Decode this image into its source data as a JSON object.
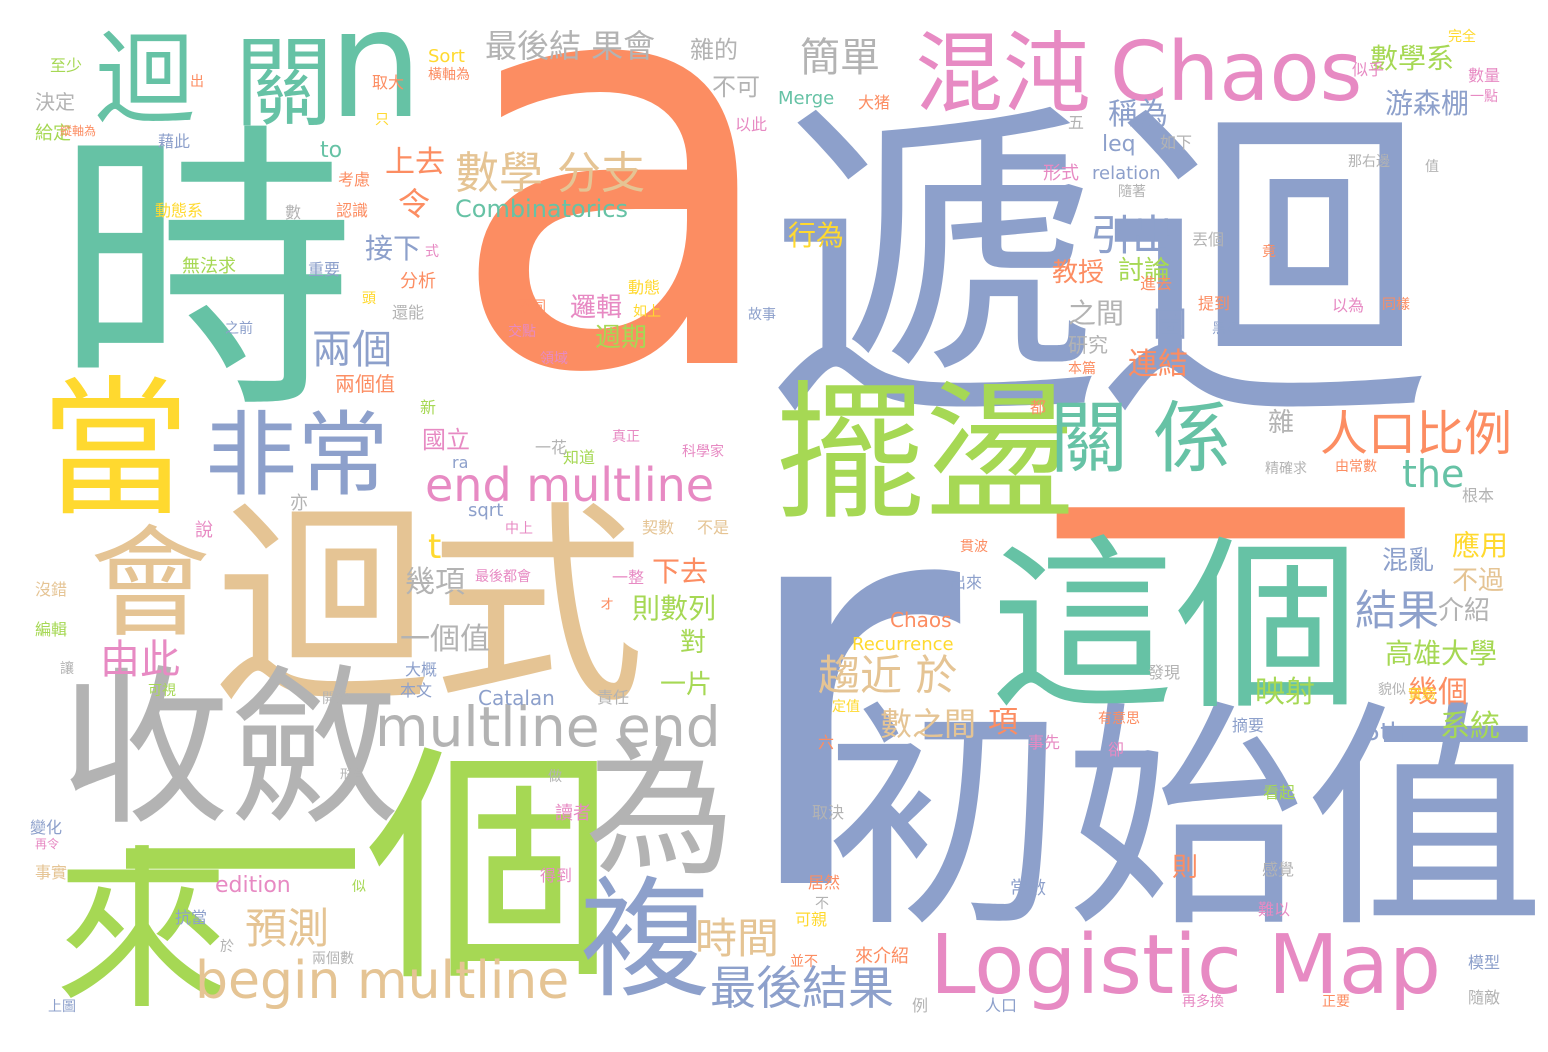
{
  "palette": {
    "orange": "#fc8d62",
    "blue": "#8da0cb",
    "green": "#66c2a5",
    "pink": "#e78ac3",
    "lime": "#a6d854",
    "yellow": "#ffd92f",
    "tan": "#e5c494",
    "grey": "#b3b3b3"
  },
  "words": [
    {
      "text": "a",
      "color": "#fc8d62"
    },
    {
      "text": "r",
      "color": "#8da0cb"
    },
    {
      "text": "遞迴",
      "color": "#8da0cb"
    },
    {
      "text": "時",
      "color": "#66c2a5"
    },
    {
      "text": "初始值",
      "color": "#8da0cb"
    },
    {
      "text": "一個",
      "color": "#a6d854"
    },
    {
      "text": "迴式",
      "color": "#e5c494"
    },
    {
      "text": "收斂",
      "color": "#b3b3b3"
    },
    {
      "text": "一",
      "color": "#fc8d62"
    },
    {
      "text": "這個",
      "color": "#66c2a5"
    },
    {
      "text": "擺盪",
      "color": "#a6d854"
    },
    {
      "text": "當",
      "color": "#ffd92f"
    },
    {
      "text": "來",
      "color": "#a6d854"
    },
    {
      "text": "為",
      "color": "#b3b3b3"
    },
    {
      "text": "會",
      "color": "#e5c494"
    },
    {
      "text": "複",
      "color": "#8da0cb"
    },
    {
      "text": "Logistic Map",
      "color": "#e78ac3"
    },
    {
      "text": "非常",
      "color": "#8da0cb"
    },
    {
      "text": "迴",
      "color": "#66c2a5"
    },
    {
      "text": "關",
      "color": "#66c2a5"
    },
    {
      "text": "n",
      "color": "#66c2a5"
    },
    {
      "text": "混沌",
      "color": "#e78ac3"
    },
    {
      "text": "Chaos",
      "color": "#e78ac3"
    },
    {
      "text": "關 係",
      "color": "#66c2a5"
    },
    {
      "text": "multline end",
      "color": "#b3b3b3"
    },
    {
      "text": "begin multline",
      "color": "#e5c494"
    },
    {
      "text": "end multline",
      "color": "#e78ac3"
    },
    {
      "text": "人口比例",
      "color": "#fc8d62"
    },
    {
      "text": "數學 分支",
      "color": "#e5c494"
    },
    {
      "text": "最後結果",
      "color": "#8da0cb"
    },
    {
      "text": "趨近 於",
      "color": "#e5c494"
    },
    {
      "text": "時間",
      "color": "#e5c494"
    },
    {
      "text": "預測",
      "color": "#e5c494"
    },
    {
      "text": "結果",
      "color": "#8da0cb"
    },
    {
      "text": "引出",
      "color": "#8da0cb"
    },
    {
      "text": "兩個",
      "color": "#8da0cb"
    },
    {
      "text": "由此",
      "color": "#e78ac3"
    },
    {
      "text": "簡單",
      "color": "#b3b3b3"
    },
    {
      "text": "最後結 果會",
      "color": "#b3b3b3"
    },
    {
      "text": "Combinatorics",
      "color": "#66c2a5"
    },
    {
      "text": "數學系",
      "color": "#a6d854"
    },
    {
      "text": "the",
      "color": "#66c2a5"
    },
    {
      "text": "令",
      "color": "#fc8d62"
    },
    {
      "text": "高雄大學",
      "color": "#a6d854"
    },
    {
      "text": "游森棚",
      "color": "#8da0cb"
    },
    {
      "text": "稱為",
      "color": "#8da0cb"
    },
    {
      "text": "上去",
      "color": "#fc8d62"
    },
    {
      "text": "t",
      "color": "#ffd92f"
    },
    {
      "text": "一個值",
      "color": "#b3b3b3"
    },
    {
      "text": "幾項",
      "color": "#b3b3b3"
    },
    {
      "text": "下去",
      "color": "#fc8d62"
    },
    {
      "text": "則數列",
      "color": "#a6d854"
    },
    {
      "text": "一片",
      "color": "#a6d854"
    },
    {
      "text": "對",
      "color": "#a6d854"
    },
    {
      "text": "數之間",
      "color": "#e5c494"
    },
    {
      "text": "項",
      "color": "#fc8d62"
    },
    {
      "text": "映射",
      "color": "#a6d854"
    },
    {
      "text": "系統",
      "color": "#a6d854"
    },
    {
      "text": "幾個",
      "color": "#fc8d62"
    },
    {
      "text": "應用",
      "color": "#ffd92f"
    },
    {
      "text": "不過",
      "color": "#e5c494"
    },
    {
      "text": "介紹",
      "color": "#b3b3b3"
    },
    {
      "text": "混亂",
      "color": "#8da0cb"
    },
    {
      "text": "5th",
      "color": "#8da0cb"
    },
    {
      "text": "連結",
      "color": "#fc8d62"
    },
    {
      "text": "之間",
      "color": "#b3b3b3"
    },
    {
      "text": "圖",
      "color": "#8da0cb"
    },
    {
      "text": "研究",
      "color": "#b3b3b3"
    },
    {
      "text": "教授",
      "color": "#fc8d62"
    },
    {
      "text": "討論",
      "color": "#a6d854"
    },
    {
      "text": "邏輯",
      "color": "#e78ac3"
    },
    {
      "text": "週期",
      "color": "#a6d854"
    },
    {
      "text": "行為",
      "color": "#ffd92f"
    },
    {
      "text": "接下",
      "color": "#8da0cb"
    },
    {
      "text": "國立",
      "color": "#e78ac3"
    },
    {
      "text": "雜",
      "color": "#b3b3b3"
    },
    {
      "text": "to",
      "color": "#66c2a5"
    },
    {
      "text": "leq",
      "color": "#8da0cb"
    },
    {
      "text": "relation",
      "color": "#8da0cb"
    },
    {
      "text": "形式",
      "color": "#e78ac3"
    },
    {
      "text": "Merge",
      "color": "#66c2a5"
    },
    {
      "text": "Sort",
      "color": "#ffd92f"
    },
    {
      "text": "Catalan",
      "color": "#8da0cb"
    },
    {
      "text": "Chaos",
      "color": "#fc8d62"
    },
    {
      "text": "Recurrence",
      "color": "#ffd92f"
    },
    {
      "text": "edition",
      "color": "#e78ac3"
    },
    {
      "text": "sqrt",
      "color": "#8da0cb"
    },
    {
      "text": "ra",
      "color": "#8da0cb"
    },
    {
      "text": "不可",
      "color": "#b3b3b3"
    },
    {
      "text": "雜的",
      "color": "#b3b3b3"
    },
    {
      "text": "取大",
      "color": "#fc8d62"
    },
    {
      "text": "兩個值",
      "color": "#fc8d62"
    },
    {
      "text": "分析",
      "color": "#fc8d62"
    },
    {
      "text": "無法求",
      "color": "#a6d854"
    },
    {
      "text": "動態系",
      "color": "#ffd92f"
    },
    {
      "text": "決定",
      "color": "#b3b3b3"
    },
    {
      "text": "至少",
      "color": "#a6d854"
    },
    {
      "text": "給定",
      "color": "#a6d854"
    },
    {
      "text": "藉此",
      "color": "#8da0cb"
    },
    {
      "text": "出",
      "color": "#fc8d62"
    },
    {
      "text": "只",
      "color": "#ffd92f"
    },
    {
      "text": "考慮",
      "color": "#fc8d62"
    },
    {
      "text": "認識",
      "color": "#fc8d62"
    },
    {
      "text": "數",
      "color": "#b3b3b3"
    },
    {
      "text": "重要",
      "color": "#8da0cb"
    },
    {
      "text": "還能",
      "color": "#b3b3b3"
    },
    {
      "text": "之前",
      "color": "#8da0cb"
    },
    {
      "text": "不同",
      "color": "#fc8d62"
    },
    {
      "text": "交點",
      "color": "#e78ac3"
    },
    {
      "text": "領域",
      "color": "#e78ac3"
    },
    {
      "text": "動態",
      "color": "#ffd92f"
    },
    {
      "text": "如上",
      "color": "#ffd92f"
    },
    {
      "text": "知道",
      "color": "#a6d854"
    },
    {
      "text": "真正",
      "color": "#e78ac3"
    },
    {
      "text": "科學家",
      "color": "#e78ac3"
    },
    {
      "text": "契數",
      "color": "#e5c494"
    },
    {
      "text": "不是",
      "color": "#e5c494"
    },
    {
      "text": "最後都會",
      "color": "#e78ac3"
    },
    {
      "text": "一整",
      "color": "#e78ac3"
    },
    {
      "text": "大概",
      "color": "#8da0cb"
    },
    {
      "text": "本文",
      "color": "#8da0cb"
    },
    {
      "text": "責任",
      "color": "#b3b3b3"
    },
    {
      "text": "開始",
      "color": "#b3b3b3"
    },
    {
      "text": "可視",
      "color": "#a6d854"
    },
    {
      "text": "讓",
      "color": "#b3b3b3"
    },
    {
      "text": "編輯",
      "color": "#a6d854"
    },
    {
      "text": "沒錯",
      "color": "#e5c494"
    },
    {
      "text": "說",
      "color": "#e78ac3"
    },
    {
      "text": "亦",
      "color": "#b3b3b3"
    },
    {
      "text": "變化",
      "color": "#8da0cb"
    },
    {
      "text": "事實",
      "color": "#e5c494"
    },
    {
      "text": "抗當",
      "color": "#8da0cb"
    },
    {
      "text": "於",
      "color": "#b3b3b3"
    },
    {
      "text": "上圖",
      "color": "#8da0cb"
    },
    {
      "text": "兩個數",
      "color": "#b3b3b3"
    },
    {
      "text": "讀者",
      "color": "#e78ac3"
    },
    {
      "text": "得到",
      "color": "#e78ac3"
    },
    {
      "text": "似",
      "color": "#a6d854"
    },
    {
      "text": "做",
      "color": "#b3b3b3"
    },
    {
      "text": "形有",
      "color": "#b3b3b3"
    },
    {
      "text": "可親",
      "color": "#ffd92f"
    },
    {
      "text": "並不",
      "color": "#fc8d62"
    },
    {
      "text": "來介紹",
      "color": "#fc8d62"
    },
    {
      "text": "例",
      "color": "#b3b3b3"
    },
    {
      "text": "人口",
      "color": "#8da0cb"
    },
    {
      "text": "居然",
      "color": "#fc8d62"
    },
    {
      "text": "不",
      "color": "#b3b3b3"
    },
    {
      "text": "六",
      "color": "#fc8d62"
    },
    {
      "text": "定值",
      "color": "#ffd92f"
    },
    {
      "text": "取決",
      "color": "#b3b3b3"
    },
    {
      "text": "有意思",
      "color": "#fc8d62"
    },
    {
      "text": "卻",
      "color": "#e78ac3"
    },
    {
      "text": "事先",
      "color": "#e78ac3"
    },
    {
      "text": "看起",
      "color": "#a6d854"
    },
    {
      "text": "摘要",
      "color": "#8da0cb"
    },
    {
      "text": "實驗",
      "color": "#ffd92f"
    },
    {
      "text": "貌似",
      "color": "#b3b3b3"
    },
    {
      "text": "發現",
      "color": "#b3b3b3"
    },
    {
      "text": "出來",
      "color": "#8da0cb"
    },
    {
      "text": "貫波",
      "color": "#fc8d62"
    },
    {
      "text": "常數",
      "color": "#8da0cb"
    },
    {
      "text": "則",
      "color": "#fc8d62"
    },
    {
      "text": "感覺",
      "color": "#b3b3b3"
    },
    {
      "text": "難以",
      "color": "#e78ac3"
    },
    {
      "text": "模型",
      "color": "#8da0cb"
    },
    {
      "text": "隨敵",
      "color": "#b3b3b3"
    },
    {
      "text": "正要",
      "color": "#fc8d62"
    },
    {
      "text": "再多換",
      "color": "#e78ac3"
    },
    {
      "text": "根本",
      "color": "#b3b3b3"
    },
    {
      "text": "由常數",
      "color": "#fc8d62"
    },
    {
      "text": "精確求",
      "color": "#b3b3b3"
    },
    {
      "text": "黑色",
      "color": "#8da0cb"
    },
    {
      "text": "提到",
      "color": "#fc8d62"
    },
    {
      "text": "進去",
      "color": "#fc8d62"
    },
    {
      "text": "竟",
      "color": "#fc8d62"
    },
    {
      "text": "以為",
      "color": "#e78ac3"
    },
    {
      "text": "同樣",
      "color": "#fc8d62"
    },
    {
      "text": "丟個",
      "color": "#b3b3b3"
    },
    {
      "text": "本篇",
      "color": "#fc8d62"
    },
    {
      "text": "故事",
      "color": "#8da0cb"
    },
    {
      "text": "隨著",
      "color": "#b3b3b3"
    },
    {
      "text": "那右邊",
      "color": "#b3b3b3"
    },
    {
      "text": "值",
      "color": "#b3b3b3"
    },
    {
      "text": "如下",
      "color": "#b3b3b3"
    },
    {
      "text": "五",
      "color": "#b3b3b3"
    },
    {
      "text": "以此",
      "color": "#e78ac3"
    },
    {
      "text": "大猪",
      "color": "#fc8d62"
    },
    {
      "text": "似乎",
      "color": "#e78ac3"
    },
    {
      "text": "完全",
      "color": "#ffd92f"
    },
    {
      "text": "數量",
      "color": "#e78ac3"
    },
    {
      "text": "一點",
      "color": "#e78ac3"
    },
    {
      "text": "新",
      "color": "#a6d854"
    },
    {
      "text": "都",
      "color": "#fc8d62"
    },
    {
      "text": "一花",
      "color": "#b3b3b3"
    },
    {
      "text": "中上",
      "color": "#e78ac3"
    },
    {
      "text": "オ",
      "color": "#fc8d62"
    },
    {
      "text": "再令",
      "color": "#e78ac3"
    },
    {
      "text": "式",
      "color": "#e78ac3"
    },
    {
      "text": "頭",
      "color": "#ffd92f"
    },
    {
      "text": "橫軸為",
      "color": "#fc8d62"
    },
    {
      "text": "縱軸為",
      "color": "#fc8d62"
    }
  ]
}
